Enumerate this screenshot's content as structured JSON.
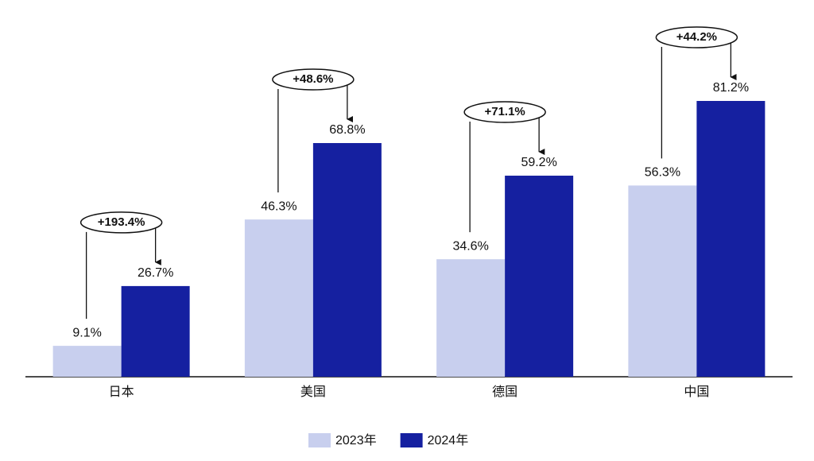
{
  "chart_data": {
    "type": "bar",
    "categories": [
      "日本",
      "美国",
      "德国",
      "中国"
    ],
    "series": [
      {
        "name": "2023年",
        "color": "#c8cfee",
        "values": [
          9.1,
          46.3,
          34.6,
          56.3
        ],
        "value_labels": [
          "9.1%",
          "46.3%",
          "34.6%",
          "56.3%"
        ]
      },
      {
        "name": "2024年",
        "color": "#1520a0",
        "values": [
          26.7,
          68.8,
          59.2,
          81.2
        ],
        "value_labels": [
          "26.7%",
          "68.8%",
          "59.2%",
          "81.2%"
        ]
      }
    ],
    "annotations": [
      "+193.4%",
      "+48.6%",
      "+71.1%",
      "+44.2%"
    ],
    "legend": "bottom"
  }
}
